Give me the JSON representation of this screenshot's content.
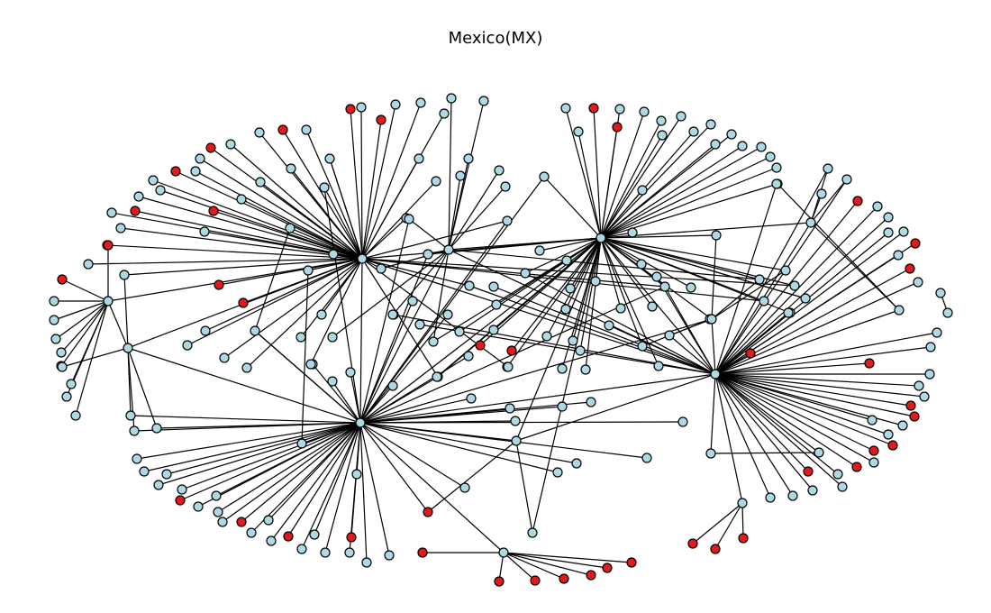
{
  "title": "Mexico(MX)",
  "colors": {
    "regular_node": "#add8e6",
    "highlight_node": "#e31a1c",
    "edge": "#000000"
  },
  "legend": "none"
}
